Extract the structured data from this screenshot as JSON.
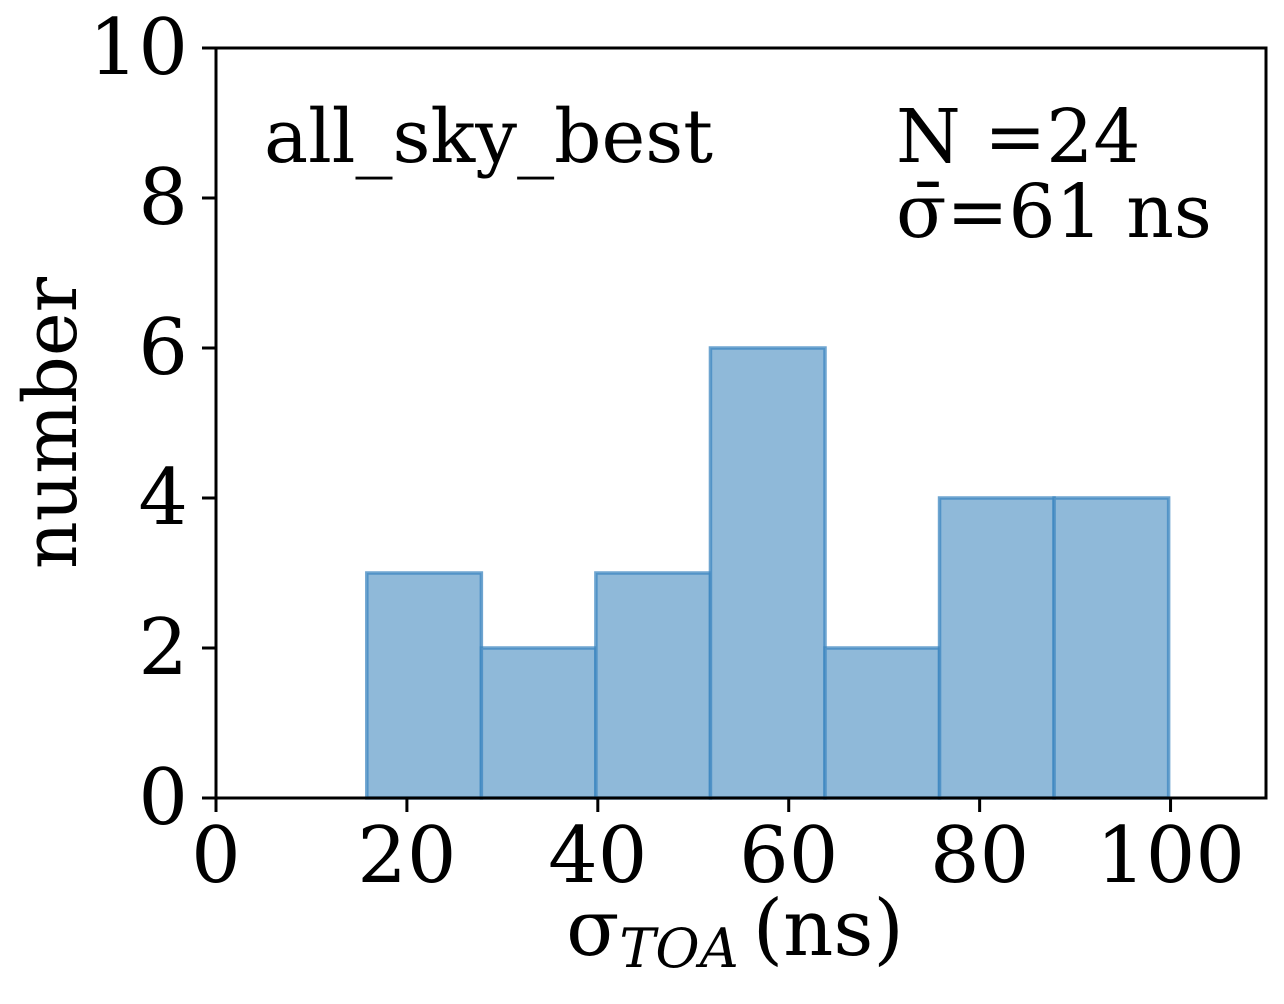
{
  "chart_data": {
    "type": "bar",
    "bin_edges": [
      15.8,
      27.8,
      39.8,
      51.8,
      63.8,
      75.8,
      87.8,
      99.8
    ],
    "values": [
      3,
      2,
      3,
      6,
      2,
      4,
      4
    ],
    "xlim": [
      0,
      110
    ],
    "ylim": [
      0,
      10
    ],
    "xticks": [
      0,
      20,
      40,
      60,
      80,
      100
    ],
    "yticks": [
      0,
      2,
      4,
      6,
      8,
      10
    ],
    "xlabel": {
      "symbol": "σ",
      "subscript": "TOA",
      "unit": "(ns)"
    },
    "ylabel": "number",
    "grid": false,
    "bar_fill": "#8fb9d9",
    "bar_edge": "#3d87c0",
    "annotations": {
      "dataset": "all_sky_best",
      "count": "N =24",
      "mean_symbol": "σ̄",
      "mean_text": "=61 ns"
    }
  }
}
